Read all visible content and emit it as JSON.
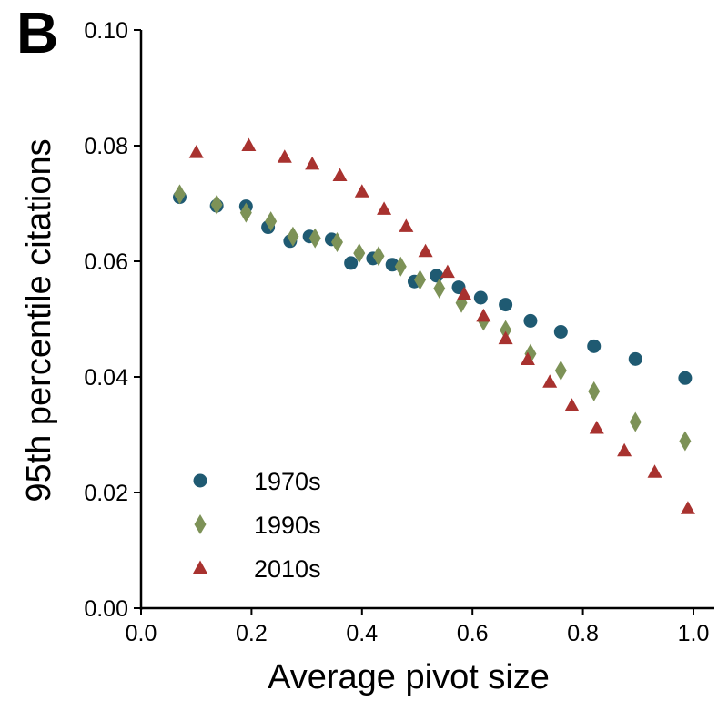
{
  "panel_label": "B",
  "chart_data": {
    "type": "scatter",
    "xlabel": "Average pivot size",
    "ylabel": "95th percentile citations",
    "xlim": [
      0.0,
      1.0
    ],
    "ylim": [
      0.0,
      0.1
    ],
    "xticks": [
      "0.0",
      "0.2",
      "0.4",
      "0.6",
      "0.8",
      "1.0"
    ],
    "yticks": [
      "0.00",
      "0.02",
      "0.04",
      "0.06",
      "0.08",
      "0.10"
    ],
    "grid": false,
    "legend_position": "bottom-left",
    "series": [
      {
        "name": "1970s",
        "marker": "circle",
        "color": "#1f5a72",
        "x": [
          0.07,
          0.137,
          0.19,
          0.23,
          0.27,
          0.305,
          0.345,
          0.38,
          0.42,
          0.455,
          0.495,
          0.535,
          0.575,
          0.615,
          0.66,
          0.705,
          0.76,
          0.82,
          0.895,
          0.985
        ],
        "y": [
          0.0711,
          0.0696,
          0.0695,
          0.0659,
          0.0635,
          0.0643,
          0.0638,
          0.0597,
          0.0605,
          0.0594,
          0.0565,
          0.0575,
          0.0555,
          0.0537,
          0.0525,
          0.0497,
          0.0478,
          0.0453,
          0.0431,
          0.0398
        ]
      },
      {
        "name": "1990s",
        "marker": "diamond",
        "color": "#7d9257",
        "x": [
          0.07,
          0.137,
          0.19,
          0.235,
          0.275,
          0.315,
          0.355,
          0.395,
          0.43,
          0.47,
          0.505,
          0.54,
          0.58,
          0.62,
          0.66,
          0.705,
          0.76,
          0.82,
          0.895,
          0.985
        ],
        "y": [
          0.0716,
          0.0698,
          0.0684,
          0.0669,
          0.0643,
          0.064,
          0.0633,
          0.0614,
          0.0609,
          0.0591,
          0.0568,
          0.0553,
          0.0528,
          0.0497,
          0.0481,
          0.044,
          0.0411,
          0.0375,
          0.0322,
          0.0289
        ]
      },
      {
        "name": "2010s",
        "marker": "triangle",
        "color": "#a8322f",
        "x": [
          0.1,
          0.195,
          0.26,
          0.31,
          0.36,
          0.4,
          0.44,
          0.48,
          0.515,
          0.555,
          0.585,
          0.62,
          0.66,
          0.7,
          0.74,
          0.78,
          0.825,
          0.875,
          0.93,
          0.99
        ],
        "y": [
          0.0788,
          0.08,
          0.078,
          0.0768,
          0.0748,
          0.072,
          0.069,
          0.066,
          0.0617,
          0.0581,
          0.0543,
          0.0505,
          0.0466,
          0.043,
          0.0391,
          0.035,
          0.0311,
          0.0272,
          0.0235,
          0.0172
        ]
      }
    ]
  }
}
